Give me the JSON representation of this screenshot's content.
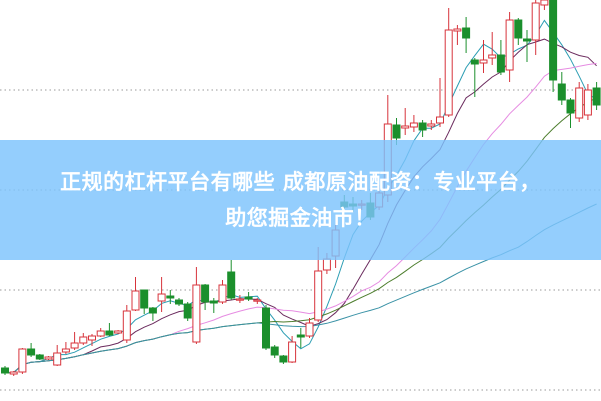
{
  "headline": {
    "line1": "正规的杠杆平台有哪些 成都原油配资：专业平台，",
    "line2": "助您掘金油市！"
  },
  "colors": {
    "up": "#d7333b",
    "down": "#1b8f2c",
    "banner": "#7dc3fc",
    "grid": "#9a9a9a",
    "ma": [
      "#2b9db3",
      "#6b2b5e",
      "#e68ce2",
      "#4c7d2c",
      "#3a92a6"
    ]
  },
  "chart_data": {
    "type": "candlestick",
    "title": "",
    "xlabel": "",
    "ylabel": "",
    "ylim": [
      0,
      40
    ],
    "grid": "horizontal dotted",
    "legend": "none",
    "moving_averages": [
      5,
      10,
      20,
      30,
      60
    ],
    "fields": [
      "open",
      "close",
      "high",
      "low"
    ],
    "candles": [
      [
        3.2,
        2.7,
        3.4,
        2.5
      ],
      [
        2.6,
        2.8,
        2.9,
        2.4
      ],
      [
        2.8,
        5.1,
        5.2,
        2.6
      ],
      [
        5.1,
        4.5,
        5.7,
        4.3
      ],
      [
        4.5,
        4.1,
        4.6,
        4.0
      ],
      [
        4.1,
        4.3,
        4.4,
        4.0
      ],
      [
        3.5,
        4.7,
        5.5,
        3.4
      ],
      [
        4.8,
        5.1,
        5.8,
        4.6
      ],
      [
        5.2,
        5.7,
        6.8,
        5.0
      ],
      [
        5.7,
        6.3,
        6.7,
        5.5
      ],
      [
        6.0,
        6.4,
        6.6,
        5.4
      ],
      [
        6.4,
        6.9,
        7.2,
        6.3
      ],
      [
        6.9,
        6.5,
        7.7,
        6.4
      ],
      [
        6.7,
        6.9,
        7.0,
        6.6
      ],
      [
        6.0,
        8.9,
        9.5,
        5.7
      ],
      [
        9.0,
        10.9,
        12.3,
        8.9
      ],
      [
        11.0,
        9.2,
        11.0,
        8.6
      ],
      [
        9.2,
        8.7,
        9.3,
        7.9
      ],
      [
        9.9,
        10.6,
        12.3,
        8.8
      ],
      [
        10.4,
        10.2,
        11.0,
        9.6
      ],
      [
        10.0,
        9.6,
        10.2,
        9.4
      ],
      [
        9.6,
        8.2,
        9.8,
        7.9
      ],
      [
        5.8,
        11.5,
        13.3,
        5.6
      ],
      [
        11.5,
        9.8,
        11.6,
        9.0
      ],
      [
        9.9,
        9.7,
        10.2,
        8.7
      ],
      [
        9.8,
        11.5,
        12.0,
        9.6
      ],
      [
        12.8,
        10.2,
        14.0,
        10.0
      ],
      [
        10.0,
        10.1,
        10.5,
        9.7
      ],
      [
        10.3,
        10.1,
        10.8,
        9.9
      ],
      [
        9.9,
        10.0,
        10.2,
        9.6
      ],
      [
        9.2,
        5.2,
        9.5,
        5.0
      ],
      [
        5.3,
        4.5,
        5.5,
        4.2
      ],
      [
        4.4,
        3.8,
        4.5,
        3.6
      ],
      [
        3.8,
        5.8,
        6.4,
        3.7
      ],
      [
        6.5,
        6.3,
        7.2,
        5.2
      ],
      [
        6.4,
        7.7,
        8.2,
        6.2
      ],
      [
        8.0,
        12.9,
        15.3,
        7.8
      ],
      [
        13.0,
        14.1,
        14.7,
        12.6
      ],
      [
        14.4,
        17.0,
        17.5,
        13.2
      ],
      [
        19.8,
        19.3,
        20.5,
        18.8
      ],
      [
        19.6,
        19.4,
        20.3,
        18.8
      ],
      [
        19.5,
        19.6,
        20.0,
        19.0
      ],
      [
        19.7,
        18.3,
        20.7,
        18.0
      ],
      [
        19.3,
        20.7,
        21.5,
        19.0
      ],
      [
        20.5,
        27.6,
        30.5,
        19.8
      ],
      [
        27.5,
        26.2,
        28.2,
        25.5
      ],
      [
        27.2,
        27.4,
        29.2,
        26.5
      ],
      [
        27.3,
        27.7,
        28.5,
        26.8
      ],
      [
        27.7,
        27.0,
        28.0,
        26.3
      ],
      [
        27.4,
        27.6,
        28.0,
        27.0
      ],
      [
        27.7,
        28.3,
        32.2,
        27.3
      ],
      [
        28.5,
        37.0,
        39.2,
        28.3
      ],
      [
        36.9,
        37.1,
        37.5,
        35.5
      ],
      [
        37.2,
        36.2,
        38.3,
        34.7
      ],
      [
        34.0,
        33.6,
        34.2,
        30.3
      ],
      [
        33.7,
        34.0,
        36.0,
        32.7
      ],
      [
        34.2,
        34.5,
        36.8,
        33.5
      ],
      [
        34.5,
        32.8,
        36.0,
        32.5
      ],
      [
        33.0,
        38.0,
        38.8,
        31.8
      ],
      [
        38.0,
        36.2,
        38.2,
        35.5
      ],
      [
        36.1,
        35.9,
        37.0,
        33.8
      ],
      [
        36.0,
        39.7,
        40.0,
        34.5
      ],
      [
        39.5,
        40.0,
        40.0,
        39.0
      ],
      [
        40.0,
        32.0,
        40.0,
        30.8
      ],
      [
        31.6,
        30.0,
        32.8,
        29.5
      ],
      [
        30.0,
        28.7,
        30.2,
        27.2
      ],
      [
        28.2,
        31.2,
        31.8,
        27.8
      ],
      [
        28.5,
        31.0,
        31.6,
        28.0
      ],
      [
        31.2,
        29.5,
        31.8,
        29.0
      ]
    ]
  }
}
